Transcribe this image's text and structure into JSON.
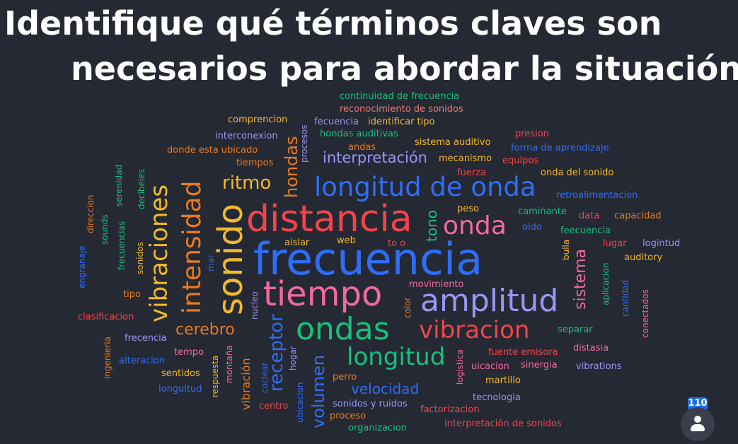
{
  "title": {
    "line1": "Identifique qué términos claves son",
    "line2": "necesarios para abordar la situación."
  },
  "colors": {
    "background": "#252934",
    "blue": "#2f6df6",
    "red": "#f2444a",
    "green": "#18c07a",
    "orange": "#e97a1c",
    "yellow": "#f2b92d",
    "pink": "#f06aa0",
    "lavender": "#9a95f5",
    "salmon": "#f07a6e"
  },
  "words": [
    "frecuencia",
    "distancia",
    "sonido",
    "tiempo",
    "longitud de onda",
    "amplitud",
    "ondas",
    "onda",
    "vibraciones",
    "intensidad",
    "vibracion",
    "longitud",
    "cerebro",
    "ritmo",
    "hondas",
    "receptor",
    "volumen",
    "tono",
    "sistema",
    "velocidad",
    "interpretación",
    "continuidad de frecuencia",
    "reconocimiento de sonidos",
    "comprencion",
    "fecuencia",
    "identificar tipo",
    "interconexion",
    "hondas auditivas",
    "sistema auditivo",
    "presion",
    "procesos",
    "andas",
    "forma de aprendizaje",
    "donde esta ubicado",
    "tiempos",
    "mecanismo",
    "equipos",
    "fuerza",
    "onda del sonido",
    "serenidad",
    "decibeles",
    "retroalimentacion",
    "direccion",
    "sounds",
    "peso",
    "caminante",
    "data",
    "capacidad",
    "frecuencias",
    "oido",
    "feecuencia",
    "engranaje",
    "sonidos",
    "aislar",
    "web",
    "to o",
    "bulla",
    "lugar",
    "logintud",
    "mar",
    "auditory",
    "movimiento",
    "aplicacion",
    "cantidad",
    "tipo",
    "nucleo",
    "color",
    "conectados",
    "clasificacion",
    "separar",
    "frecencia",
    "ingenieria",
    "montaña",
    "distasia",
    "tempo",
    "fuente emisora",
    "alteracion",
    "hogar",
    "vibración",
    "sentidos",
    "logistica",
    "uicacion",
    "sinergia",
    "vibrations",
    "respuesta",
    "coclear",
    "martillo",
    "longuitud",
    "perro",
    "ubicacion",
    "tecnologia",
    "centro",
    "sonidos y ruidos",
    "factorizacion",
    "proceso",
    "organizacion",
    "interpretación de sonidos"
  ],
  "participants": {
    "count": "110",
    "icon": "person-icon"
  }
}
